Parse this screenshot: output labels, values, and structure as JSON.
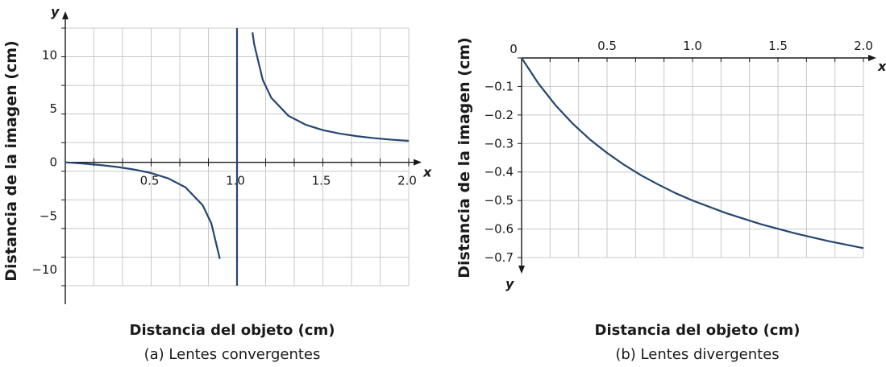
{
  "colors": {
    "curve": "#24466f",
    "grid": "#c8c8c8",
    "axis": "#1a1a1a"
  },
  "chart_data": [
    {
      "type": "line",
      "xlabel": "Distancia del objeto (cm)",
      "ylabel": "Distancia de la imagen (cm)",
      "x_var": "x",
      "y_var": "y",
      "caption": "(a) Lentes convergentes",
      "xlim": [
        0,
        2.0
      ],
      "ylim": [
        -11.5,
        12.5
      ],
      "grid": true,
      "x_ticks": [
        {
          "value": 0.5,
          "label": "0.5"
        },
        {
          "value": 1.0,
          "label": "1.0"
        },
        {
          "value": 1.5,
          "label": "1.5"
        },
        {
          "value": 2.0,
          "label": "2.0"
        }
      ],
      "y_ticks": [
        {
          "value": 10,
          "label": "10"
        },
        {
          "value": 5,
          "label": "5"
        },
        {
          "value": 0,
          "label": "0"
        },
        {
          "value": -5,
          "label": "−5"
        },
        {
          "value": -10,
          "label": "−10"
        }
      ],
      "asymptote_x": 1.0,
      "series": [
        {
          "x": [
            0,
            0.1,
            0.2,
            0.3,
            0.4,
            0.5,
            0.6,
            0.7,
            0.8,
            0.85,
            0.9
          ],
          "y": [
            0,
            -0.11,
            -0.25,
            -0.43,
            -0.67,
            -1.0,
            -1.5,
            -2.33,
            -4.0,
            -5.67,
            -9.0
          ]
        },
        {
          "x": [
            1.09,
            1.1,
            1.15,
            1.2,
            1.3,
            1.4,
            1.5,
            1.6,
            1.7,
            1.8,
            1.9,
            2.0
          ],
          "y": [
            12.1,
            11.0,
            7.67,
            6.0,
            4.33,
            3.5,
            3.0,
            2.67,
            2.43,
            2.25,
            2.11,
            2.0
          ]
        }
      ]
    },
    {
      "type": "line",
      "xlabel": "Distancia del objeto (cm)",
      "ylabel": "Distancia de la imagen (cm)",
      "x_var": "x",
      "y_var": "y",
      "caption": "(b) Lentes divergentes",
      "xlim": [
        0,
        2.0
      ],
      "ylim": [
        -0.7,
        0
      ],
      "grid": true,
      "x_ticks": [
        {
          "value": 0,
          "label": "0"
        },
        {
          "value": 0.5,
          "label": "0.5"
        },
        {
          "value": 1.0,
          "label": "1.0"
        },
        {
          "value": 1.5,
          "label": "1.5"
        },
        {
          "value": 2.0,
          "label": "2.0"
        }
      ],
      "y_ticks": [
        {
          "value": -0.1,
          "label": "−0.1"
        },
        {
          "value": -0.2,
          "label": "−0.2"
        },
        {
          "value": -0.3,
          "label": "−0.3"
        },
        {
          "value": -0.4,
          "label": "−0.4"
        },
        {
          "value": -0.5,
          "label": "−0.5"
        },
        {
          "value": -0.6,
          "label": "−0.6"
        },
        {
          "value": -0.7,
          "label": "−0.7"
        }
      ],
      "series": [
        {
          "x": [
            0,
            0.1,
            0.2,
            0.3,
            0.4,
            0.5,
            0.6,
            0.7,
            0.8,
            0.9,
            1.0,
            1.2,
            1.4,
            1.6,
            1.8,
            2.0
          ],
          "y": [
            0,
            -0.091,
            -0.167,
            -0.231,
            -0.286,
            -0.333,
            -0.375,
            -0.412,
            -0.444,
            -0.474,
            -0.5,
            -0.545,
            -0.583,
            -0.615,
            -0.643,
            -0.667
          ]
        }
      ]
    }
  ]
}
